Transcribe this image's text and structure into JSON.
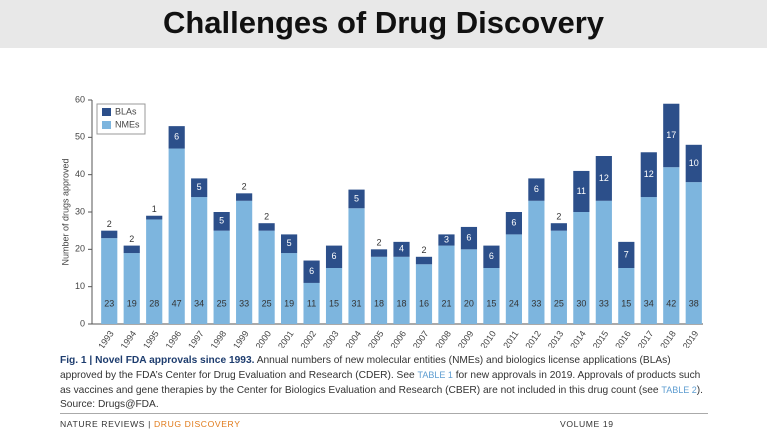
{
  "slide_title": "Challenges of Drug Discovery",
  "chart_data": {
    "type": "stacked-bar",
    "y_label": "Number of drugs approved",
    "categories": [
      "1993",
      "1994",
      "1995",
      "1996",
      "1997",
      "1998",
      "1999",
      "2000",
      "2001",
      "2002",
      "2003",
      "2004",
      "2005",
      "2006",
      "2007",
      "2008",
      "2009",
      "2010",
      "2011",
      "2012",
      "2013",
      "2014",
      "2015",
      "2016",
      "2017",
      "2018",
      "2019"
    ],
    "series": [
      {
        "name": "NMEs",
        "color": "#7db5de",
        "values": [
          23,
          19,
          28,
          47,
          34,
          25,
          33,
          25,
          19,
          11,
          15,
          31,
          18,
          18,
          16,
          21,
          20,
          15,
          24,
          33,
          25,
          30,
          33,
          15,
          34,
          42,
          38
        ]
      },
      {
        "name": "BLAs",
        "color": "#2c4f8a",
        "values": [
          2,
          2,
          1,
          6,
          5,
          5,
          2,
          2,
          5,
          6,
          6,
          5,
          2,
          4,
          2,
          3,
          6,
          6,
          6,
          6,
          2,
          11,
          12,
          7,
          12,
          17,
          10
        ]
      }
    ],
    "ylim": [
      0,
      60
    ],
    "yticks": [
      0,
      10,
      20,
      30,
      40,
      50,
      60
    ],
    "grid": false,
    "legend": "top-left"
  },
  "caption": {
    "label": "Fig. 1 |",
    "title": "Novel FDA approvals since 1993.",
    "segments": [
      "Annual numbers of new molecular entities (NMEs) and biologics license applications (BLAs) approved by the FDA’s Center for Drug Evaluation and Research (CDER). See ",
      "TABLE 1",
      " for new approvals in 2019. Approvals of products such as vaccines and gene therapies by the Center for Biologics Evaluation and Research (CBER) are not included in this drug count (see ",
      "TABLE 2",
      "). Source: Drugs@FDA."
    ]
  },
  "footer": {
    "journal": "NATURE REVIEWS",
    "separator": "|",
    "section": "DRUG DISCOVERY",
    "volume": "VOLUME 19"
  }
}
